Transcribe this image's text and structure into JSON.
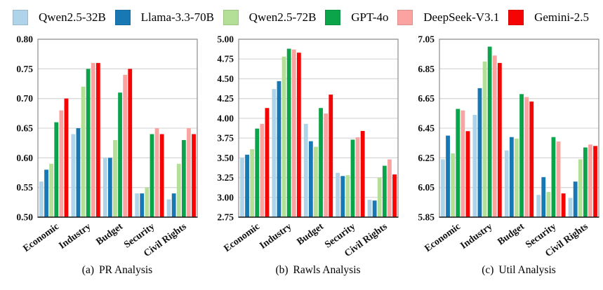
{
  "legend": {
    "items": [
      {
        "label": "Qwen2.5-32B",
        "color": "#AFD3E8"
      },
      {
        "label": "Llama-3.3-70B",
        "color": "#1878B4"
      },
      {
        "label": "Qwen2.5-72B",
        "color": "#B4DF96"
      },
      {
        "label": "GPT-4o",
        "color": "#0CA44A"
      },
      {
        "label": "DeepSeek-V3.1",
        "color": "#FBA3A1"
      },
      {
        "label": "Gemini-2.5",
        "color": "#F50404"
      }
    ]
  },
  "chart_data": [
    {
      "type": "bar",
      "caption_prefix": "(a)",
      "caption_title": "PR Analysis",
      "categories": [
        "Economic",
        "Industry",
        "Budget",
        "Security",
        "Civil Rights"
      ],
      "series": [
        {
          "name": "Qwen2.5-32B",
          "values": [
            0.56,
            0.64,
            0.6,
            0.54,
            0.53
          ]
        },
        {
          "name": "Llama-3.3-70B",
          "values": [
            0.58,
            0.65,
            0.6,
            0.54,
            0.54
          ]
        },
        {
          "name": "Qwen2.5-72B",
          "values": [
            0.59,
            0.72,
            0.63,
            0.55,
            0.59
          ]
        },
        {
          "name": "GPT-4o",
          "values": [
            0.66,
            0.75,
            0.71,
            0.64,
            0.63
          ]
        },
        {
          "name": "DeepSeek-V3.1",
          "values": [
            0.68,
            0.76,
            0.74,
            0.65,
            0.65
          ]
        },
        {
          "name": "Gemini-2.5",
          "values": [
            0.7,
            0.76,
            0.75,
            0.64,
            0.64
          ]
        }
      ],
      "title": "",
      "xlabel": "",
      "ylabel": "",
      "ylim": [
        0.5,
        0.8
      ],
      "ytick_step": 0.05,
      "ytick_decimals": 2,
      "grid": true,
      "legend_position": "shared-top"
    },
    {
      "type": "bar",
      "caption_prefix": "(b)",
      "caption_title": "Rawls Analysis",
      "categories": [
        "Economic",
        "Industry",
        "Budget",
        "Security",
        "Civil Rights"
      ],
      "series": [
        {
          "name": "Qwen2.5-32B",
          "values": [
            3.5,
            4.37,
            3.93,
            3.31,
            2.97
          ]
        },
        {
          "name": "Llama-3.3-70B",
          "values": [
            3.54,
            4.47,
            3.71,
            3.27,
            2.96
          ]
        },
        {
          "name": "Qwen2.5-72B",
          "values": [
            3.61,
            4.78,
            3.64,
            3.28,
            3.25
          ]
        },
        {
          "name": "GPT-4o",
          "values": [
            3.87,
            4.88,
            4.13,
            3.73,
            3.4
          ]
        },
        {
          "name": "DeepSeek-V3.1",
          "values": [
            3.93,
            4.87,
            4.06,
            3.76,
            3.48
          ]
        },
        {
          "name": "Gemini-2.5",
          "values": [
            4.13,
            4.83,
            4.3,
            3.84,
            3.29
          ]
        }
      ],
      "title": "",
      "xlabel": "",
      "ylabel": "",
      "ylim": [
        2.75,
        5.0
      ],
      "ytick_step": 0.25,
      "ytick_decimals": 2,
      "grid": true,
      "legend_position": "shared-top"
    },
    {
      "type": "bar",
      "caption_prefix": "(c)",
      "caption_title": "Util Analysis",
      "categories": [
        "Economic",
        "Industry",
        "Budget",
        "Security",
        "Civil Rights"
      ],
      "series": [
        {
          "name": "Qwen2.5-32B",
          "values": [
            6.24,
            6.54,
            6.3,
            6.0,
            5.98
          ]
        },
        {
          "name": "Llama-3.3-70B",
          "values": [
            6.4,
            6.72,
            6.39,
            6.12,
            6.09
          ]
        },
        {
          "name": "Qwen2.5-72B",
          "values": [
            6.28,
            6.9,
            6.38,
            6.02,
            6.24
          ]
        },
        {
          "name": "GPT-4o",
          "values": [
            6.58,
            7.0,
            6.68,
            6.39,
            6.32
          ]
        },
        {
          "name": "DeepSeek-V3.1",
          "values": [
            6.57,
            6.94,
            6.66,
            6.36,
            6.34
          ]
        },
        {
          "name": "Gemini-2.5",
          "values": [
            6.43,
            6.89,
            6.63,
            6.01,
            6.33
          ]
        }
      ],
      "title": "",
      "xlabel": "",
      "ylabel": "",
      "ylim": [
        5.85,
        7.05
      ],
      "ytick_step": 0.2,
      "ytick_decimals": 2,
      "grid": true,
      "legend_position": "shared-top"
    }
  ],
  "style": {
    "gridline_color": "#d9d9d9",
    "box_color": "#8c8c8c",
    "baseline_color": "#1a1a1a"
  }
}
